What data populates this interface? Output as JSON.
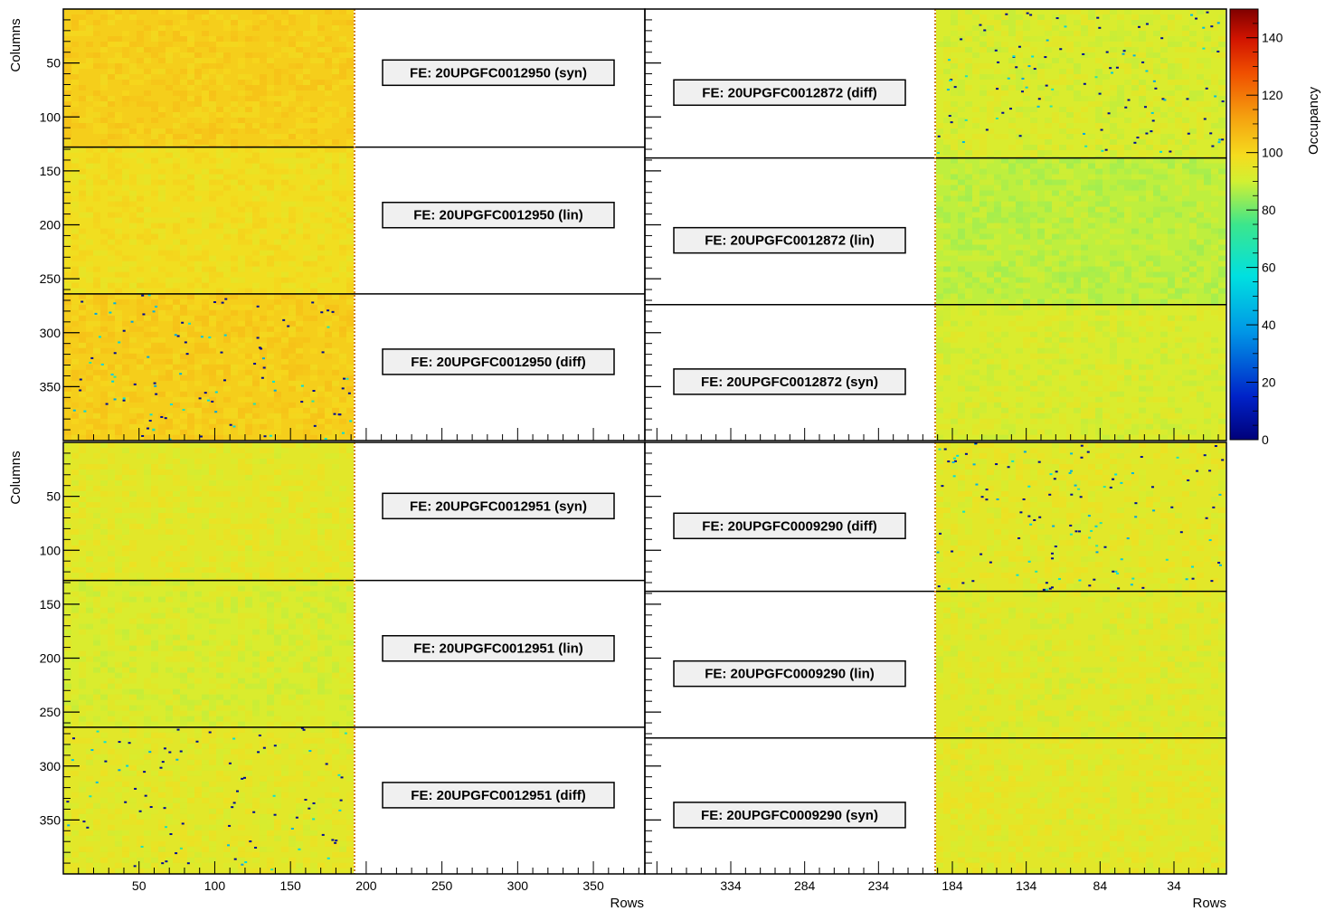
{
  "chart_data": {
    "type": "heatmap",
    "colorbar": {
      "label": "Occupancy",
      "range": [
        0,
        150
      ],
      "ticks": [
        0,
        20,
        40,
        60,
        80,
        100,
        120,
        140
      ],
      "tick_labels": [
        "0",
        "20",
        "40",
        "60",
        "80",
        "100",
        "120",
        "140"
      ],
      "palette": "rainbow (dark blue to dark red)"
    },
    "y_axis": {
      "label": "Columns",
      "range_per_module": [
        0,
        400
      ],
      "ticks": [
        50,
        100,
        150,
        200,
        250,
        300,
        350
      ],
      "tick_labels": [
        "50",
        "100",
        "150",
        "200",
        "250",
        "300",
        "350"
      ]
    },
    "x_axis_left": {
      "label": "Rows",
      "range": [
        0,
        384
      ],
      "ticks": [
        50,
        100,
        150,
        200,
        250,
        300,
        350
      ],
      "tick_labels": [
        "50",
        "100",
        "150",
        "200",
        "250",
        "300",
        "350"
      ]
    },
    "x_axis_right": {
      "label": "Rows",
      "direction": "reversed",
      "ticks": [
        334,
        284,
        234,
        184,
        134,
        84,
        34
      ],
      "tick_labels": [
        "334",
        "284",
        "234",
        "184",
        "134",
        "84",
        "34"
      ]
    },
    "modules": [
      {
        "position": "top-left",
        "data_side": "left",
        "chips": [
          {
            "label": "FE: 20UPGFC0012950 (syn)",
            "mean_occupancy": 102,
            "defect_density": 0.0
          },
          {
            "label": "FE: 20UPGFC0012950 (lin)",
            "mean_occupancy": 98,
            "defect_density": 0.0
          },
          {
            "label": "FE: 20UPGFC0012950 (diff)",
            "mean_occupancy": 102,
            "defect_density": 0.012
          }
        ]
      },
      {
        "position": "top-right",
        "data_side": "right",
        "chips": [
          {
            "label": "FE: 20UPGFC0012872 (diff)",
            "mean_occupancy": 92,
            "defect_density": 0.012
          },
          {
            "label": "FE: 20UPGFC0012872 (lin)",
            "mean_occupancy": 88,
            "defect_density": 0.0
          },
          {
            "label": "FE: 20UPGFC0012872 (syn)",
            "mean_occupancy": 92,
            "defect_density": 0.0
          }
        ]
      },
      {
        "position": "bottom-left",
        "data_side": "left",
        "chips": [
          {
            "label": "FE: 20UPGFC0012951 (syn)",
            "mean_occupancy": 94,
            "defect_density": 0.0
          },
          {
            "label": "FE: 20UPGFC0012951 (lin)",
            "mean_occupancy": 92,
            "defect_density": 0.0
          },
          {
            "label": "FE: 20UPGFC0012951 (diff)",
            "mean_occupancy": 94,
            "defect_density": 0.01
          }
        ]
      },
      {
        "position": "bottom-right",
        "data_side": "right",
        "chips": [
          {
            "label": "FE: 20UPGFC0009290 (diff)",
            "mean_occupancy": 94,
            "defect_density": 0.014
          },
          {
            "label": "FE: 20UPGFC0009290 (lin)",
            "mean_occupancy": 93,
            "defect_density": 0.0
          },
          {
            "label": "FE: 20UPGFC0009290 (syn)",
            "mean_occupancy": 94,
            "defect_density": 0.0
          }
        ]
      }
    ]
  }
}
